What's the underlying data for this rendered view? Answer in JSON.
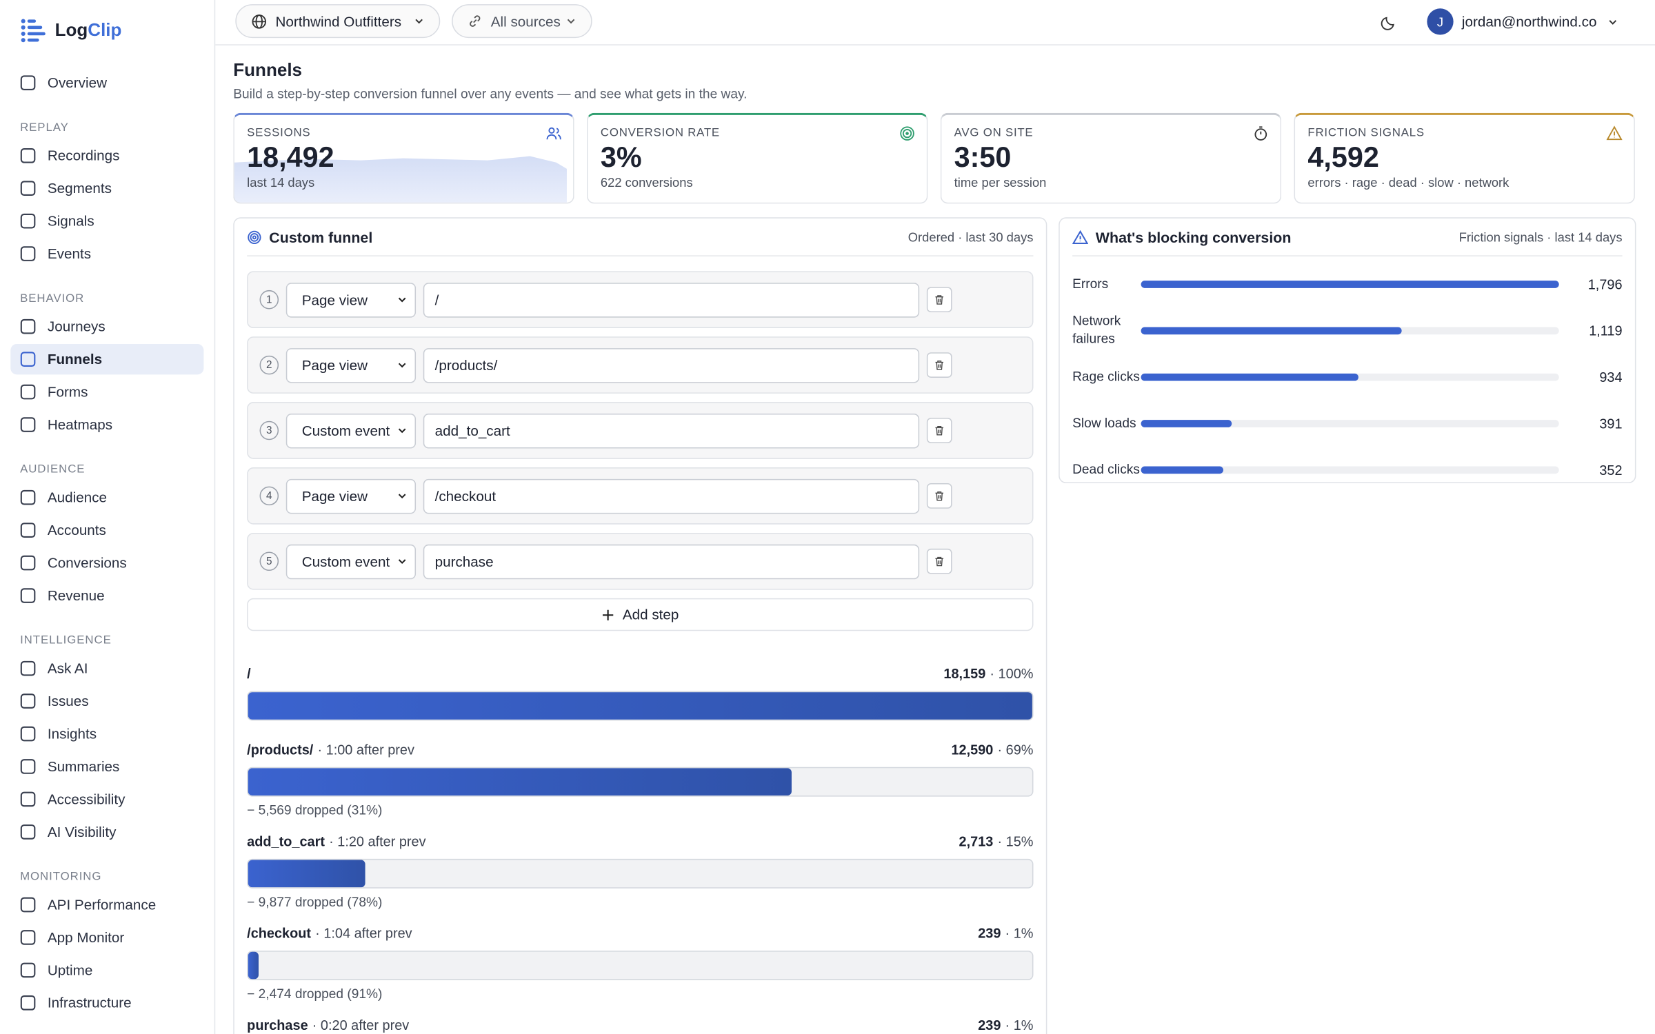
{
  "brand": {
    "name_a": "Log",
    "name_b": "Clip"
  },
  "nav": {
    "items": [
      {
        "label": "Overview"
      }
    ],
    "groups": [
      {
        "title": "REPLAY",
        "items": [
          {
            "label": "Recordings"
          },
          {
            "label": "Segments"
          },
          {
            "label": "Signals"
          },
          {
            "label": "Events"
          }
        ]
      },
      {
        "title": "BEHAVIOR",
        "items": [
          {
            "label": "Journeys"
          },
          {
            "label": "Funnels",
            "active": true
          },
          {
            "label": "Forms"
          },
          {
            "label": "Heatmaps"
          }
        ]
      },
      {
        "title": "AUDIENCE",
        "items": [
          {
            "label": "Audience"
          },
          {
            "label": "Accounts"
          },
          {
            "label": "Conversions"
          },
          {
            "label": "Revenue"
          }
        ]
      },
      {
        "title": "INTELLIGENCE",
        "items": [
          {
            "label": "Ask AI"
          },
          {
            "label": "Issues"
          },
          {
            "label": "Insights"
          },
          {
            "label": "Summaries"
          },
          {
            "label": "Accessibility"
          },
          {
            "label": "AI Visibility"
          }
        ]
      },
      {
        "title": "MONITORING",
        "items": [
          {
            "label": "API Performance"
          },
          {
            "label": "App Monitor"
          },
          {
            "label": "Uptime"
          },
          {
            "label": "Infrastructure"
          }
        ]
      }
    ]
  },
  "topbar": {
    "workspace": "Northwind Outfitters",
    "source": "All sources",
    "user_initial": "J",
    "user_email": "jordan@northwind.co"
  },
  "header": {
    "title": "Funnels",
    "subtitle": "Build a step-by-step conversion funnel over any events — and see what gets in the way."
  },
  "stats": [
    {
      "label": "SESSIONS",
      "value": "18,492",
      "note": "last 14 days",
      "accent": "#6a86d6"
    },
    {
      "label": "CONVERSION RATE",
      "value": "3%",
      "note": "622 conversions",
      "accent": "#2f9e6f"
    },
    {
      "label": "AVG ON SITE",
      "value": "3:50",
      "note": "time per session",
      "accent": "#c9ccd2"
    },
    {
      "label": "FRICTION SIGNALS",
      "value": "4,592",
      "note": "errors · rage · dead · slow · network",
      "accent": "#c89a3c"
    }
  ],
  "funnel": {
    "title": "Custom funnel",
    "meta": "Ordered · last 30 days",
    "steps": [
      {
        "number": 1,
        "type": "Page view",
        "value": "/"
      },
      {
        "number": 2,
        "type": "Page view",
        "value": "/products/"
      },
      {
        "number": 3,
        "type": "Custom event",
        "value": "add_to_cart"
      },
      {
        "number": 4,
        "type": "Page view",
        "value": "/checkout"
      },
      {
        "number": 5,
        "type": "Custom event",
        "value": "purchase"
      }
    ],
    "add_step": "Add step",
    "results": [
      {
        "name": "/",
        "count": 18159,
        "count_label": "18,159",
        "share": "· 100%"
      },
      {
        "name": "/products/",
        "after": "· 1:00 after prev",
        "count": 12590,
        "count_label": "12,590",
        "share": "· 69%",
        "dropped": "− 5,569 dropped (31%)"
      },
      {
        "name": "add_to_cart",
        "after": "· 1:20 after prev",
        "count": 2713,
        "count_label": "2,713",
        "share": "· 15%",
        "dropped": "− 9,877 dropped (78%)"
      },
      {
        "name": "/checkout",
        "after": "· 1:04 after prev",
        "count": 239,
        "count_label": "239",
        "share": "· 1%",
        "dropped": "− 2,474 dropped (91%)"
      },
      {
        "name": "purchase",
        "after": "· 0:20 after prev",
        "count": 239,
        "count_label": "239",
        "share": "· 1%"
      }
    ]
  },
  "blocking": {
    "title": "What's blocking conversion",
    "meta": "Friction signals · last 14 days",
    "rows": [
      {
        "label": "Errors",
        "value": 1796,
        "value_label": "1,796"
      },
      {
        "label": "Network failures",
        "value": 1119,
        "value_label": "1,119"
      },
      {
        "label": "Rage clicks",
        "value": 934,
        "value_label": "934"
      },
      {
        "label": "Slow loads",
        "value": 391,
        "value_label": "391"
      },
      {
        "label": "Dead clicks",
        "value": 352,
        "value_label": "352"
      }
    ]
  }
}
